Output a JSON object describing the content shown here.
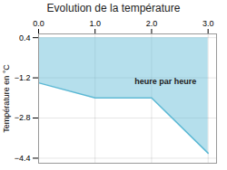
{
  "chart_data": {
    "type": "area",
    "title": "Evolution de la température",
    "ylabel": "Température en °C",
    "x": [
      0,
      1,
      2,
      3
    ],
    "values": [
      -1.4,
      -2.0,
      -2.0,
      -4.2
    ],
    "y_top": 0.4,
    "color": "#5bb8d4",
    "xlim": [
      0,
      3.15
    ],
    "xticks": [
      0,
      1,
      2,
      3
    ],
    "ylim": [
      -4.6,
      0.55
    ],
    "yticks": [
      0.4,
      -1.2,
      -2.8,
      -4.4
    ],
    "grid": true,
    "annotations": [
      {
        "text": "heure par heure",
        "x": 1.7,
        "y": -1.35
      }
    ]
  }
}
